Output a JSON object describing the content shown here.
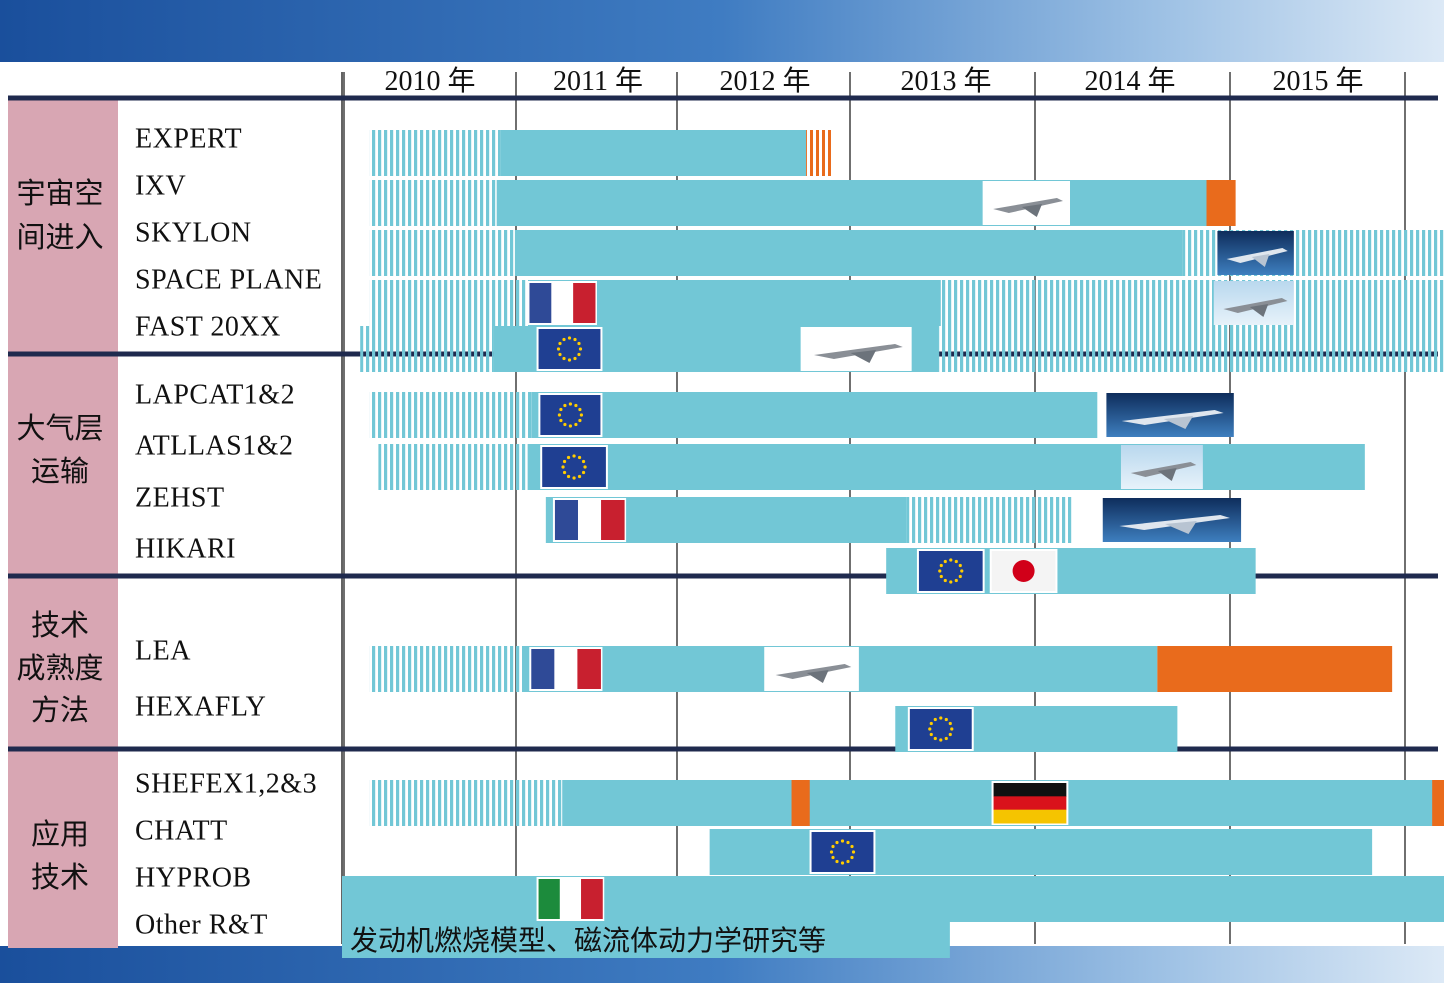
{
  "chart_data": {
    "type": "gantt",
    "x_axis": {
      "start": 2009.85,
      "end": 2016.0,
      "year_labels": [
        "2010 年",
        "2011 年",
        "2012 年",
        "2013 年",
        "2014 年",
        "2015 年"
      ]
    },
    "colors": {
      "bar": "#72c7d6",
      "hatch": "#72c7d6",
      "milestone": "#e96b1c",
      "divider": "#1f2a4e",
      "category_bg": "#d8a6b3",
      "header_band": "#3d74b8"
    },
    "groups": [
      {
        "label": [
          "宇宙空",
          "间进入"
        ],
        "rows": [
          0,
          1,
          2,
          3,
          4
        ]
      },
      {
        "label": [
          "大气层",
          "运输"
        ],
        "rows": [
          5,
          6,
          7,
          8
        ]
      },
      {
        "label": [
          "技术",
          "成熟度",
          "方法"
        ],
        "rows": [
          9,
          10
        ]
      },
      {
        "label": [
          "应用",
          "技术"
        ],
        "rows": [
          11,
          12,
          13,
          14
        ]
      }
    ],
    "rows": [
      {
        "name": "EXPERT",
        "segments": [
          {
            "kind": "hatch",
            "start": 2010.0,
            "end": 2010.72
          },
          {
            "kind": "solid",
            "start": 2010.72,
            "end": 2012.4
          },
          {
            "kind": "milestone-hatch",
            "start": 2012.4,
            "end": 2012.55
          }
        ],
        "flags": [],
        "images": []
      },
      {
        "name": "IXV",
        "segments": [
          {
            "kind": "hatch",
            "start": 2010.0,
            "end": 2010.7
          },
          {
            "kind": "solid",
            "start": 2010.7,
            "end": 2014.6
          },
          {
            "kind": "milestone",
            "start": 2014.6,
            "end": 2014.76
          }
        ],
        "flags": [],
        "images": [
          {
            "id": "ixv-vehicle",
            "start": 2013.37,
            "end": 2013.85
          }
        ]
      },
      {
        "name": "SKYLON",
        "segments": [
          {
            "kind": "hatch",
            "start": 2010.0,
            "end": 2010.8
          },
          {
            "kind": "solid",
            "start": 2010.8,
            "end": 2014.47
          },
          {
            "kind": "hatch",
            "start": 2014.47,
            "end": 2016.0
          }
        ],
        "flags": [],
        "images": [
          {
            "id": "skylon-vehicle",
            "start": 2014.66,
            "end": 2015.08
          }
        ]
      },
      {
        "name": "SPACE PLANE",
        "segments": [
          {
            "kind": "hatch",
            "start": 2010.0,
            "end": 2010.88
          },
          {
            "kind": "solid",
            "start": 2010.88,
            "end": 2013.14
          },
          {
            "kind": "hatch",
            "start": 2013.14,
            "end": 2016.0
          }
        ],
        "flags": [
          {
            "country": "france",
            "start": 2010.88,
            "end": 2011.24
          }
        ],
        "images": [
          {
            "id": "space-plane-vehicle",
            "start": 2014.64,
            "end": 2015.08
          }
        ]
      },
      {
        "name": "FAST 20XX",
        "segments": [
          {
            "kind": "hatch",
            "start": 2009.95,
            "end": 2010.68
          },
          {
            "kind": "solid",
            "start": 2010.68,
            "end": 2013.13
          },
          {
            "kind": "hatch",
            "start": 2013.13,
            "end": 2015.95
          }
        ],
        "flags": [
          {
            "country": "eu",
            "start": 2010.93,
            "end": 2011.27
          }
        ],
        "images": [
          {
            "id": "fast20xx-vehicle",
            "start": 2012.37,
            "end": 2012.98
          }
        ]
      },
      {
        "name": "LAPCAT1&2",
        "segments": [
          {
            "kind": "hatch",
            "start": 2010.0,
            "end": 2010.89
          },
          {
            "kind": "solid",
            "start": 2010.89,
            "end": 2014.0
          }
        ],
        "flags": [
          {
            "country": "eu",
            "start": 2010.94,
            "end": 2011.27
          }
        ],
        "images": [
          {
            "id": "lapcat-vehicle",
            "start": 2014.05,
            "end": 2014.75
          }
        ]
      },
      {
        "name": "ATLLAS1&2",
        "segments": [
          {
            "kind": "hatch",
            "start": 2010.05,
            "end": 2010.87
          },
          {
            "kind": "solid",
            "start": 2010.87,
            "end": 2015.47
          }
        ],
        "flags": [
          {
            "country": "eu",
            "start": 2010.95,
            "end": 2011.3
          }
        ],
        "images": [
          {
            "id": "atllas-vehicle",
            "start": 2014.13,
            "end": 2014.58
          }
        ]
      },
      {
        "name": "ZEHST",
        "segments": [
          {
            "kind": "solid",
            "start": 2010.97,
            "end": 2012.95
          },
          {
            "kind": "hatch",
            "start": 2012.95,
            "end": 2013.86
          }
        ],
        "flags": [
          {
            "country": "france",
            "start": 2011.02,
            "end": 2011.4
          }
        ],
        "images": [
          {
            "id": "zehst-vehicle",
            "start": 2014.03,
            "end": 2014.79
          }
        ]
      },
      {
        "name": "HIKARI",
        "segments": [
          {
            "kind": "solid",
            "start": 2012.84,
            "end": 2014.87
          }
        ],
        "flags": [
          {
            "country": "eu",
            "start": 2013.02,
            "end": 2013.37
          },
          {
            "country": "japan",
            "start": 2013.42,
            "end": 2013.77
          }
        ],
        "images": []
      },
      {
        "name": "LEA",
        "segments": [
          {
            "kind": "hatch",
            "start": 2010.0,
            "end": 2010.85
          },
          {
            "kind": "solid",
            "start": 2010.85,
            "end": 2014.33
          },
          {
            "kind": "milestone",
            "start": 2014.33,
            "end": 2015.62
          }
        ],
        "flags": [
          {
            "country": "france",
            "start": 2010.89,
            "end": 2011.27
          }
        ],
        "images": [
          {
            "id": "lea-vehicle",
            "start": 2012.17,
            "end": 2012.69
          }
        ]
      },
      {
        "name": "HEXAFLY",
        "segments": [
          {
            "kind": "solid",
            "start": 2012.89,
            "end": 2014.44
          }
        ],
        "flags": [
          {
            "country": "eu",
            "start": 2012.97,
            "end": 2013.31
          }
        ],
        "images": []
      },
      {
        "name": "SHEFEX1,2&3",
        "segments": [
          {
            "kind": "hatch",
            "start": 2010.0,
            "end": 2011.06
          },
          {
            "kind": "solid",
            "start": 2011.06,
            "end": 2016.0
          }
        ],
        "milestones": [
          {
            "start": 2012.32,
            "end": 2012.42
          },
          {
            "start": 2015.84,
            "end": 2016.0
          }
        ],
        "flags": [
          {
            "country": "germany",
            "start": 2013.43,
            "end": 2013.83
          }
        ],
        "images": []
      },
      {
        "name": "CHATT",
        "segments": [
          {
            "kind": "solid",
            "start": 2011.87,
            "end": 2015.51
          }
        ],
        "flags": [
          {
            "country": "eu",
            "start": 2012.43,
            "end": 2012.77
          }
        ],
        "images": []
      },
      {
        "name": "HYPROB",
        "segments": [
          {
            "kind": "solid",
            "start": 2009.85,
            "end": 2016.0
          }
        ],
        "flags": [
          {
            "country": "italy",
            "start": 2010.93,
            "end": 2011.28
          }
        ],
        "images": []
      },
      {
        "name": "Other R&T",
        "segments": [
          {
            "kind": "note-box",
            "start": 2009.85,
            "end": 2013.19
          }
        ],
        "note": "发动机燃烧模型、磁流体动力学研究等",
        "flags": [],
        "images": []
      }
    ]
  }
}
